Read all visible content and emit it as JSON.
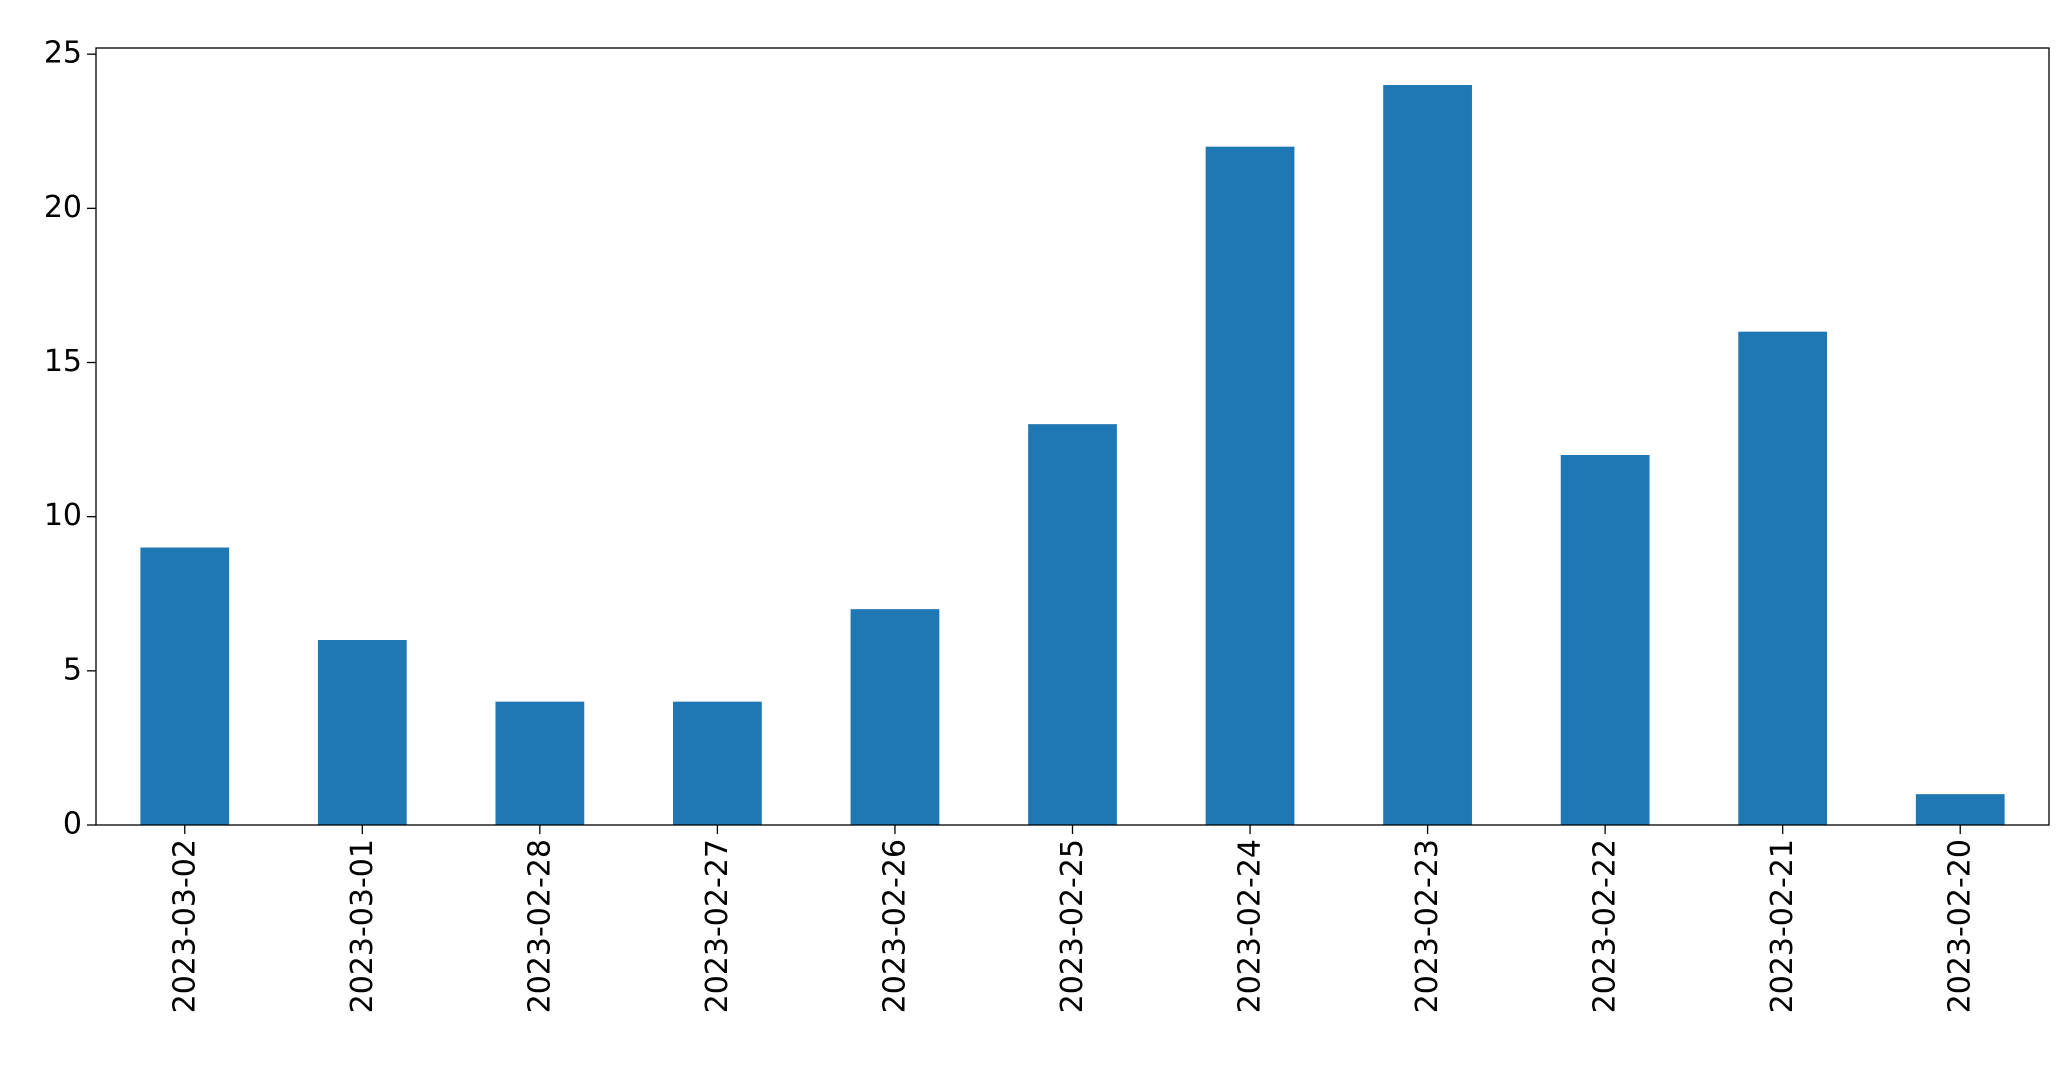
{
  "chart_data": {
    "type": "bar",
    "categories": [
      "2023-03-02",
      "2023-03-01",
      "2023-02-28",
      "2023-02-27",
      "2023-02-26",
      "2023-02-25",
      "2023-02-24",
      "2023-02-23",
      "2023-02-22",
      "2023-02-21",
      "2023-02-20"
    ],
    "values": [
      9,
      6,
      4,
      4,
      7,
      13,
      22,
      24,
      12,
      16,
      1
    ],
    "color": "#1f77b4",
    "ylim": [
      0,
      25.2
    ],
    "yticks": [
      0,
      5,
      10,
      15,
      20,
      25
    ],
    "grid": false
  }
}
